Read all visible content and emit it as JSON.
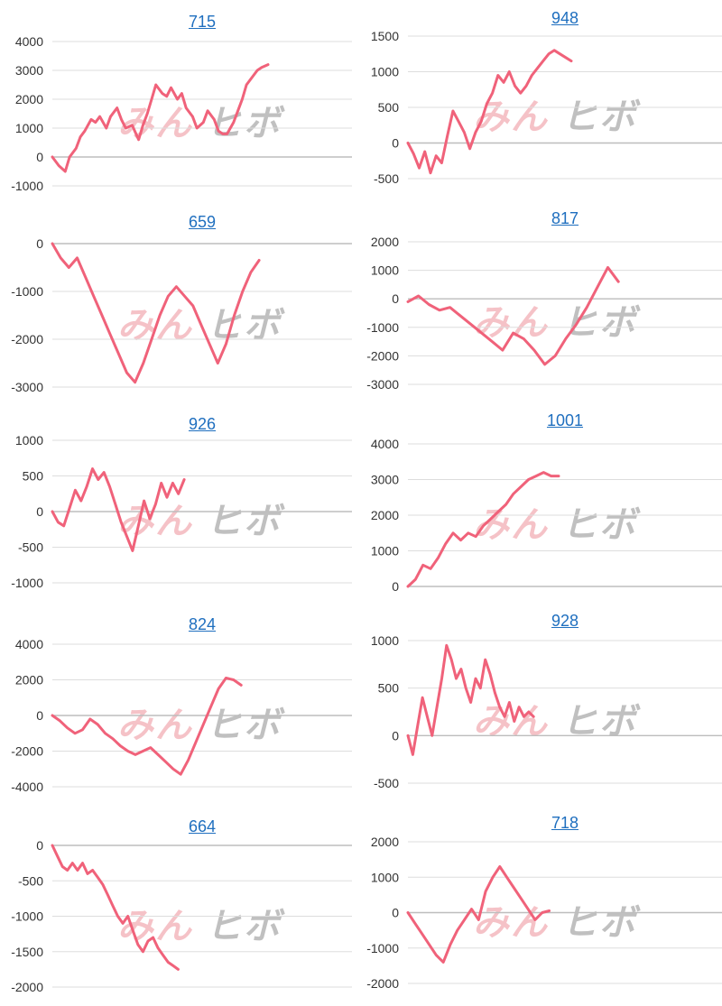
{
  "watermark": {
    "part1": "みん",
    "part2": "ヒボ"
  },
  "colors": {
    "line": "#f0627a",
    "grid": "#dddddd",
    "axis": "#bdbdbd",
    "title": "#1f6fbf",
    "tick": "#333333"
  },
  "chart_data": [
    {
      "type": "line",
      "title": "715",
      "yticks": [
        4000,
        3000,
        2000,
        1000,
        0,
        -1000
      ],
      "ylim": [
        -1000,
        4000
      ],
      "x": [
        0,
        3,
        6,
        8,
        11,
        13,
        15,
        18,
        20,
        22,
        25,
        27,
        30,
        32,
        34,
        37,
        40,
        42,
        44,
        46,
        48,
        51,
        53,
        55,
        58,
        60,
        62,
        65,
        67,
        70,
        72,
        75,
        77,
        79,
        81,
        84,
        86,
        88,
        90,
        93,
        95,
        97,
        100
      ],
      "values": [
        0,
        -300,
        -500,
        0,
        300,
        700,
        900,
        1300,
        1200,
        1400,
        1000,
        1400,
        1700,
        1300,
        1000,
        1100,
        600,
        1100,
        1500,
        2000,
        2500,
        2200,
        2100,
        2400,
        2000,
        2200,
        1700,
        1400,
        1000,
        1200,
        1600,
        1300,
        900,
        800,
        800,
        1200,
        1600,
        2000,
        2500,
        2800,
        3000,
        3100,
        3200
      ]
    },
    {
      "type": "line",
      "title": "948",
      "yticks": [
        1500,
        1000,
        500,
        0,
        -500
      ],
      "ylim": [
        -500,
        1500
      ],
      "x": [
        0,
        3,
        6,
        9,
        12,
        15,
        18,
        21,
        24,
        27,
        30,
        33,
        36,
        39,
        42,
        45,
        48,
        51,
        54,
        57,
        60,
        63,
        66,
        69,
        72,
        75,
        78,
        81,
        84,
        87
      ],
      "values": [
        0,
        -150,
        -350,
        -120,
        -420,
        -180,
        -280,
        100,
        450,
        300,
        150,
        -80,
        150,
        300,
        550,
        700,
        950,
        850,
        1000,
        800,
        700,
        800,
        950,
        1050,
        1150,
        1250,
        1300,
        1250,
        1200,
        1150
      ]
    },
    {
      "type": "line",
      "title": "659",
      "yticks": [
        0,
        -1000,
        -2000,
        -3000
      ],
      "ylim": [
        -3000,
        0
      ],
      "x": [
        0,
        4,
        8,
        12,
        16,
        20,
        24,
        28,
        32,
        36,
        40,
        44,
        48,
        52,
        56,
        60,
        64,
        68,
        72,
        76,
        80,
        84,
        88,
        92,
        96,
        100
      ],
      "values": [
        0,
        -300,
        -500,
        -300,
        -700,
        -1100,
        -1500,
        -1900,
        -2300,
        -2700,
        -2900,
        -2500,
        -2000,
        -1500,
        -1100,
        -900,
        -1100,
        -1300,
        -1700,
        -2100,
        -2500,
        -2100,
        -1500,
        -1000,
        -600,
        -350
      ]
    },
    {
      "type": "line",
      "title": "817",
      "yticks": [
        2000,
        1000,
        0,
        -1000,
        -2000,
        -3000
      ],
      "ylim": [
        -3000,
        2000
      ],
      "x": [
        0,
        5,
        10,
        15,
        20,
        25,
        30,
        35,
        40,
        45,
        50,
        55,
        60,
        65,
        70,
        75,
        80,
        85,
        90,
        95,
        100
      ],
      "values": [
        -100,
        100,
        -200,
        -400,
        -300,
        -600,
        -900,
        -1200,
        -1500,
        -1800,
        -1200,
        -1400,
        -1800,
        -2300,
        -2000,
        -1400,
        -900,
        -300,
        400,
        1100,
        600
      ]
    },
    {
      "type": "line",
      "title": "926",
      "yticks": [
        1000,
        500,
        0,
        -500,
        -1000
      ],
      "ylim": [
        -1000,
        1000
      ],
      "x": [
        0,
        4,
        8,
        12,
        16,
        20,
        24,
        28,
        32,
        36,
        40,
        44,
        48,
        52,
        56,
        60,
        64,
        68,
        72,
        76,
        80,
        84,
        88,
        92
      ],
      "values": [
        0,
        -150,
        -200,
        50,
        300,
        150,
        350,
        600,
        450,
        550,
        350,
        100,
        -150,
        -350,
        -550,
        -200,
        150,
        -100,
        100,
        400,
        200,
        400,
        250,
        450
      ]
    },
    {
      "type": "line",
      "title": "1001",
      "yticks": [
        4000,
        3000,
        2000,
        1000,
        0
      ],
      "ylim": [
        0,
        4000
      ],
      "x": [
        0,
        5,
        10,
        15,
        20,
        25,
        30,
        35,
        40,
        45,
        50,
        55,
        60,
        65,
        70,
        75,
        80,
        85,
        90,
        95,
        100
      ],
      "values": [
        0,
        200,
        600,
        500,
        800,
        1200,
        1500,
        1300,
        1500,
        1400,
        1700,
        1900,
        2100,
        2300,
        2600,
        2800,
        3000,
        3100,
        3200,
        3100,
        3100
      ]
    },
    {
      "type": "line",
      "title": "824",
      "yticks": [
        4000,
        2000,
        0,
        -2000,
        -4000
      ],
      "ylim": [
        -4000,
        4000
      ],
      "x": [
        0,
        4,
        8,
        12,
        16,
        20,
        24,
        28,
        32,
        36,
        40,
        44,
        48,
        52,
        56,
        60,
        64,
        68,
        72,
        76,
        80,
        84,
        88,
        92,
        96,
        100
      ],
      "values": [
        0,
        -300,
        -700,
        -1000,
        -800,
        -200,
        -500,
        -1000,
        -1300,
        -1700,
        -2000,
        -2200,
        -2000,
        -1800,
        -2200,
        -2600,
        -3000,
        -3300,
        -2500,
        -1500,
        -500,
        500,
        1500,
        2100,
        2000,
        1700
      ]
    },
    {
      "type": "line",
      "title": "928",
      "yticks": [
        1000,
        500,
        0,
        -500
      ],
      "ylim": [
        -500,
        1000
      ],
      "x": [
        0,
        3,
        6,
        9,
        12,
        15,
        18,
        21,
        24,
        27,
        30,
        33,
        36,
        39,
        42,
        45,
        48,
        51,
        54,
        57,
        60,
        63,
        66,
        69,
        72,
        75,
        78
      ],
      "values": [
        0,
        -200,
        100,
        400,
        200,
        0,
        300,
        600,
        950,
        800,
        600,
        700,
        500,
        350,
        600,
        500,
        800,
        650,
        450,
        300,
        200,
        350,
        150,
        300,
        200,
        250,
        200
      ]
    },
    {
      "type": "line",
      "title": "664",
      "yticks": [
        0,
        -500,
        -1000,
        -1500,
        -2000
      ],
      "ylim": [
        -2000,
        0
      ],
      "x": [
        0,
        4,
        8,
        12,
        16,
        20,
        24,
        28,
        32,
        36,
        40,
        44,
        48,
        52,
        56,
        60,
        64,
        68,
        72,
        76,
        80,
        84,
        88,
        92,
        96,
        100
      ],
      "values": [
        0,
        -150,
        -300,
        -350,
        -250,
        -350,
        -250,
        -400,
        -350,
        -450,
        -550,
        -700,
        -850,
        -1000,
        -1100,
        -1000,
        -1200,
        -1400,
        -1500,
        -1350,
        -1300,
        -1450,
        -1550,
        -1650,
        -1700,
        -1750
      ]
    },
    {
      "type": "line",
      "title": "718",
      "yticks": [
        2000,
        1000,
        0,
        -1000,
        -2000
      ],
      "ylim": [
        -2000,
        2000
      ],
      "x": [
        0,
        5,
        10,
        15,
        20,
        25,
        30,
        35,
        40,
        45,
        50,
        55,
        60,
        65,
        70,
        75,
        80,
        85,
        90,
        95,
        100
      ],
      "values": [
        0,
        -300,
        -600,
        -900,
        -1200,
        -1400,
        -900,
        -500,
        -200,
        100,
        -200,
        600,
        1000,
        1300,
        1000,
        700,
        400,
        100,
        -200,
        0,
        50
      ]
    }
  ]
}
